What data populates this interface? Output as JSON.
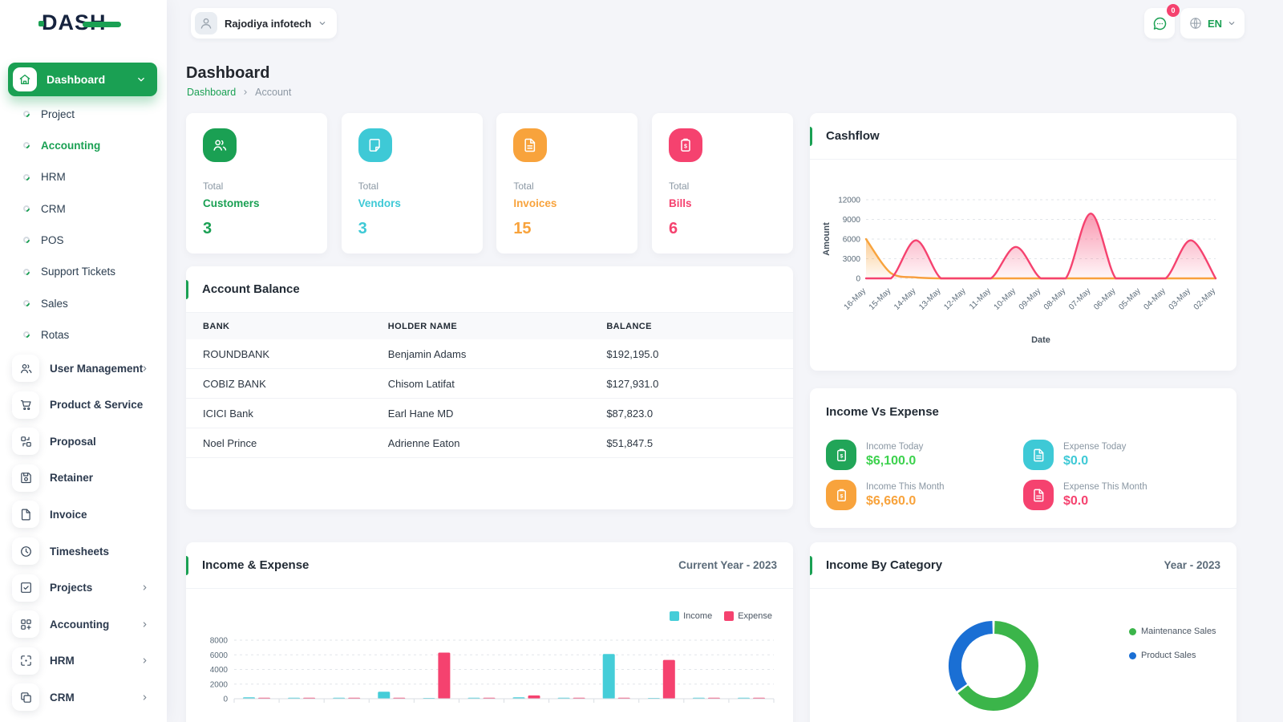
{
  "brand": {
    "name": "DASH"
  },
  "header": {
    "workspace": "Rajodiya infotech",
    "messages_badge": "0",
    "language": "EN"
  },
  "page": {
    "title": "Dashboard",
    "breadcrumb": {
      "root": "Dashboard",
      "current": "Account"
    }
  },
  "sidebar": {
    "dashboard": {
      "label": "Dashboard"
    },
    "sub_items": [
      {
        "label": "Project",
        "active": false
      },
      {
        "label": "Accounting",
        "active": true
      },
      {
        "label": "HRM",
        "active": false
      },
      {
        "label": "CRM",
        "active": false
      },
      {
        "label": "POS",
        "active": false
      },
      {
        "label": "Support Tickets",
        "active": false
      },
      {
        "label": "Sales",
        "active": false
      },
      {
        "label": "Rotas",
        "active": false
      }
    ],
    "menu_items": [
      {
        "label": "User Management",
        "icon": "users-icon",
        "chevron": true
      },
      {
        "label": "Product & Service",
        "icon": "cart-icon",
        "chevron": false
      },
      {
        "label": "Proposal",
        "icon": "proposal-icon",
        "chevron": false
      },
      {
        "label": "Retainer",
        "icon": "save-icon",
        "chevron": false
      },
      {
        "label": "Invoice",
        "icon": "file-icon",
        "chevron": false
      },
      {
        "label": "Timesheets",
        "icon": "clock-icon",
        "chevron": false
      },
      {
        "label": "Projects",
        "icon": "check-square-icon",
        "chevron": true
      },
      {
        "label": "Accounting",
        "icon": "grid-icon",
        "chevron": true
      },
      {
        "label": "HRM",
        "icon": "focus-icon",
        "chevron": true
      },
      {
        "label": "CRM",
        "icon": "copy-icon",
        "chevron": true
      }
    ]
  },
  "stat_cards": [
    {
      "prefix": "Total",
      "label": "Customers",
      "value": "3",
      "color": "#1aa053",
      "icon": "users-icon"
    },
    {
      "prefix": "Total",
      "label": "Vendors",
      "value": "3",
      "color": "#3ec9d6",
      "icon": "note-icon"
    },
    {
      "prefix": "Total",
      "label": "Invoices",
      "value": "15",
      "color": "#f8a33c",
      "icon": "file-text-icon"
    },
    {
      "prefix": "Total",
      "label": "Bills",
      "value": "6",
      "color": "#f5426f",
      "icon": "clipboard-dollar-icon"
    }
  ],
  "cashflow_panel": {
    "title": "Cashflow"
  },
  "account_balance": {
    "title": "Account Balance",
    "headers": [
      "BANK",
      "HOLDER NAME",
      "BALANCE"
    ],
    "rows": [
      {
        "bank": "ROUNDBANK",
        "holder": "Benjamin Adams",
        "balance": "$192,195.0"
      },
      {
        "bank": "COBIZ BANK",
        "holder": "Chisom Latifat",
        "balance": "$127,931.0"
      },
      {
        "bank": "ICICI Bank",
        "holder": "Earl Hane MD",
        "balance": "$87,823.0"
      },
      {
        "bank": "Noel Prince",
        "holder": "Adrienne Eaton",
        "balance": "$51,847.5"
      }
    ]
  },
  "income_vs_expense": {
    "title": "Income Vs Expense",
    "stats": [
      {
        "label": "Income Today",
        "value": "$6,100.0",
        "icon": "clipboard-dollar-icon",
        "icon_color": "#21a558",
        "value_color": "#3dd24e"
      },
      {
        "label": "Expense Today",
        "value": "$0.0",
        "icon": "file-text-icon",
        "icon_color": "#3ec9d6",
        "value_color": "#3ec9d6"
      },
      {
        "label": "Income This Month",
        "value": "$6,660.0",
        "icon": "clipboard-dollar-icon",
        "icon_color": "#f8a33c",
        "value_color": "#f8a33c"
      },
      {
        "label": "Expense This Month",
        "value": "$0.0",
        "icon": "file-text-icon",
        "icon_color": "#f5426f",
        "value_color": "#f5426f"
      }
    ]
  },
  "income_expense_panel": {
    "title": "Income & Expense",
    "period": "Current Year - 2023"
  },
  "income_by_category_panel": {
    "title": "Income By Category",
    "period": "Year - 2023"
  },
  "chart_data": [
    {
      "id": "cashflow",
      "type": "area",
      "title": "Cashflow",
      "xlabel": "Date",
      "ylabel": "Amount",
      "ylim": [
        0,
        12000
      ],
      "yticks": [
        0,
        3000,
        6000,
        9000,
        12000
      ],
      "grid": "dashed-horizontal",
      "x": [
        "16-May",
        "15-May",
        "14-May",
        "13-May",
        "12-May",
        "11-May",
        "10-May",
        "09-May",
        "08-May",
        "07-May",
        "06-May",
        "05-May",
        "04-May",
        "03-May",
        "02-May"
      ],
      "series": [
        {
          "name": "orange-series",
          "color": "#f8a33c",
          "values": [
            6000,
            800,
            150,
            0,
            0,
            0,
            0,
            0,
            0,
            0,
            0,
            0,
            0,
            0,
            0
          ]
        },
        {
          "name": "pink-series",
          "color": "#f5426f",
          "values": [
            0,
            0,
            5800,
            0,
            0,
            0,
            4800,
            0,
            0,
            9900,
            0,
            0,
            0,
            5800,
            0
          ]
        }
      ]
    },
    {
      "id": "income_expense",
      "type": "bar",
      "title": "Income & Expense",
      "period": "Current Year - 2023",
      "ylim": [
        0,
        8000
      ],
      "yticks": [
        0,
        2000,
        4000,
        6000,
        8000
      ],
      "n_groups": 12,
      "x_labels_visible": false,
      "legend": [
        "Income",
        "Expense"
      ],
      "legend_position": "top-right",
      "series": [
        {
          "name": "Income",
          "color": "#45cdd8",
          "values": [
            200,
            130,
            130,
            950,
            110,
            130,
            190,
            130,
            6100,
            110,
            130,
            130
          ]
        },
        {
          "name": "Expense",
          "color": "#f5426f",
          "values": [
            130,
            130,
            130,
            130,
            6300,
            130,
            450,
            130,
            130,
            5300,
            130,
            130
          ]
        }
      ]
    },
    {
      "id": "income_by_category",
      "type": "pie",
      "title": "Income By Category",
      "period": "Year - 2023",
      "donut": true,
      "labels": [
        "Maintenance Sales",
        "Product Sales"
      ],
      "values_pct": [
        65,
        35
      ],
      "colors": [
        "#3bb54a",
        "#1a6fd4"
      ],
      "legend_position": "right"
    }
  ]
}
